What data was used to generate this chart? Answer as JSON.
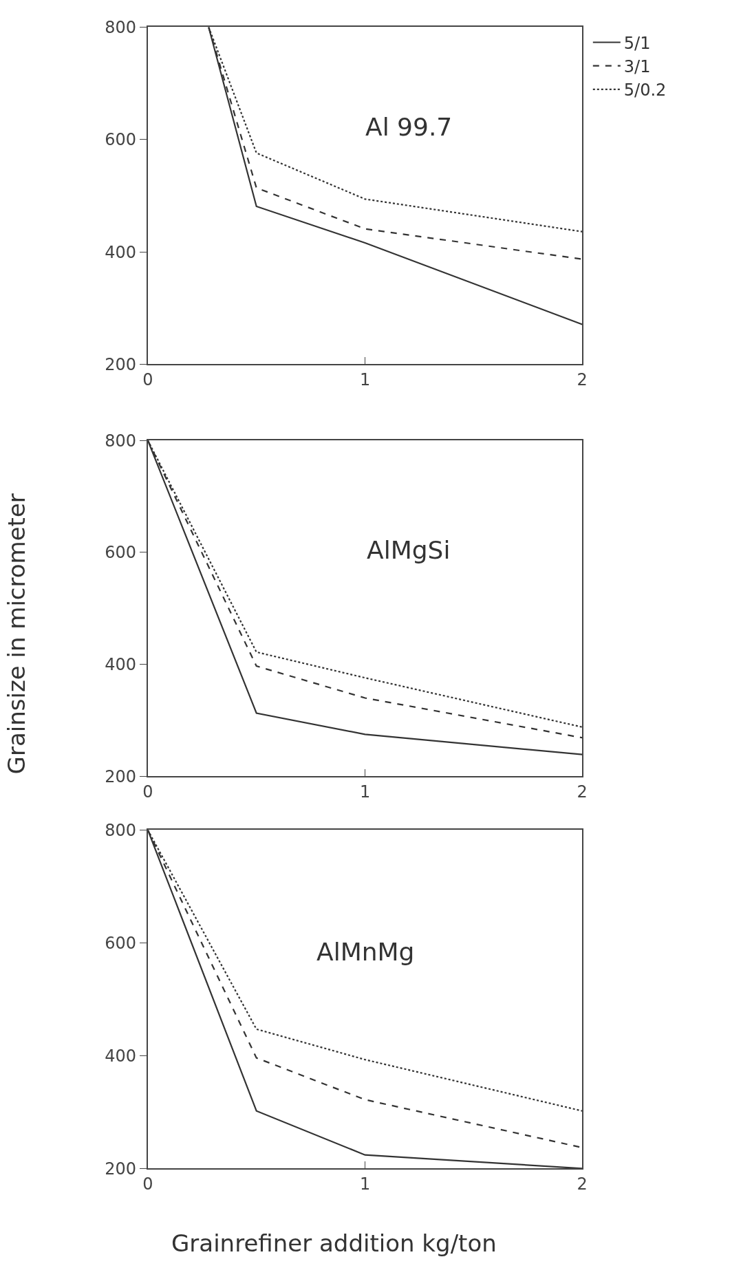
{
  "chart_data": [
    {
      "type": "line",
      "title": "Al 99.7",
      "xlim": [
        0,
        2
      ],
      "ylim": [
        200,
        800
      ],
      "xticks": [
        0,
        1,
        2
      ],
      "yticks": [
        200,
        400,
        600,
        800
      ],
      "legend": "top right",
      "marker": "none",
      "series": [
        {
          "name": "5/1",
          "color": "#333333",
          "line_style": "solid",
          "x": [
            0.28,
            0.5,
            1,
            2
          ],
          "values": [
            800,
            481,
            416,
            271
          ]
        },
        {
          "name": "3/1",
          "color": "#333333",
          "line_style": "dashed",
          "x": [
            0.28,
            0.5,
            1,
            2
          ],
          "values": [
            800,
            514,
            441,
            387
          ]
        },
        {
          "name": "5/0.2",
          "color": "#333333",
          "line_style": "dotted",
          "x": [
            0.28,
            0.5,
            1,
            2
          ],
          "values": [
            800,
            576,
            494,
            436
          ]
        }
      ]
    },
    {
      "type": "line",
      "title": "AlMgSi",
      "ylabel": "Grainsize in micrometer",
      "xlim": [
        0,
        2
      ],
      "ylim": [
        200,
        800
      ],
      "xticks": [
        0,
        1,
        2
      ],
      "yticks": [
        200,
        400,
        600,
        800
      ],
      "marker": "none",
      "series": [
        {
          "color": "#333333",
          "line_style": "solid",
          "x": [
            0,
            0.5,
            1,
            2
          ],
          "values": [
            800,
            313,
            275,
            239
          ]
        },
        {
          "color": "#333333",
          "line_style": "dashed",
          "x": [
            0,
            0.5,
            1,
            2
          ],
          "values": [
            800,
            397,
            340,
            269
          ]
        },
        {
          "color": "#333333",
          "line_style": "dotted",
          "x": [
            0,
            0.5,
            1,
            2
          ],
          "values": [
            800,
            422,
            376,
            288
          ]
        }
      ]
    },
    {
      "type": "line",
      "title": "AlMnMg",
      "xlabel": "Grainrefiner addition kg/ton",
      "xlim": [
        0,
        2
      ],
      "ylim": [
        200,
        800
      ],
      "xticks": [
        0,
        1,
        2
      ],
      "yticks": [
        200,
        400,
        600,
        800
      ],
      "marker": "none",
      "series": [
        {
          "color": "#333333",
          "line_style": "solid",
          "x": [
            0,
            0.5,
            1,
            2
          ],
          "values": [
            800,
            302,
            224,
            200
          ]
        },
        {
          "color": "#333333",
          "line_style": "dashed",
          "x": [
            0,
            0.5,
            1,
            2
          ],
          "values": [
            800,
            396,
            322,
            237
          ]
        },
        {
          "color": "#333333",
          "line_style": "dotted",
          "x": [
            0,
            0.5,
            1,
            2
          ],
          "values": [
            800,
            447,
            393,
            302
          ]
        }
      ]
    }
  ]
}
